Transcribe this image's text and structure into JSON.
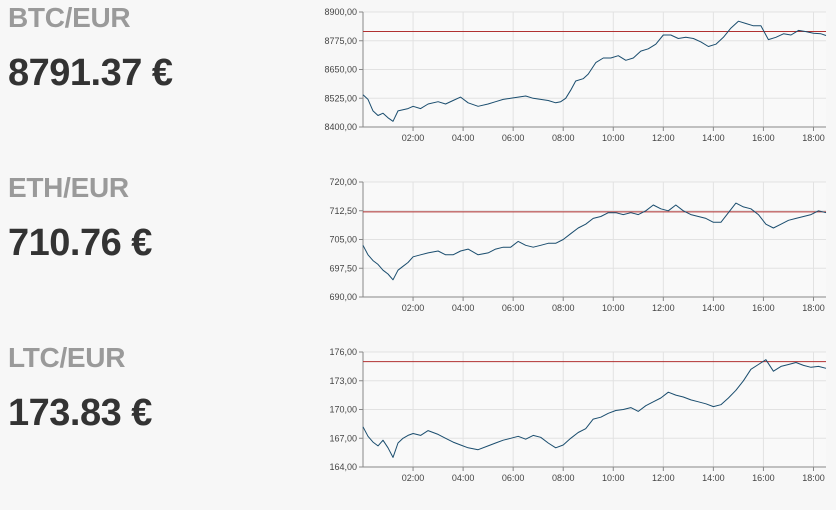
{
  "colors": {
    "line": "#1a4d6e",
    "reference": "#b03030",
    "grid": "#e2e2e2",
    "axis": "#888888",
    "pair_text": "#9a9a9a",
    "price_text": "#333333"
  },
  "tickers": [
    {
      "pair": "BTC/EUR",
      "price": "8791.37 €"
    },
    {
      "pair": "ETH/EUR",
      "price": "710.76 €"
    },
    {
      "pair": "LTC/EUR",
      "price": "173.83 €"
    }
  ],
  "chart_data": [
    {
      "type": "line",
      "title": "BTC/EUR",
      "xlabel": "",
      "ylabel": "",
      "x_unit": "hours",
      "xlim": [
        0,
        18.5
      ],
      "ylim": [
        8400,
        8900
      ],
      "yticks": [
        "8900,00",
        "8775,00",
        "8650,00",
        "8525,00",
        "8400,00"
      ],
      "xticks": [
        "02:00",
        "04:00",
        "06:00",
        "08:00",
        "10:00",
        "12:00",
        "14:00",
        "16:00",
        "18:00"
      ],
      "xtick_values": [
        2,
        4,
        6,
        8,
        10,
        12,
        14,
        16,
        18
      ],
      "grid": true,
      "reference_line": 8815,
      "x": [
        0,
        0.2,
        0.4,
        0.6,
        0.8,
        1.0,
        1.2,
        1.4,
        1.6,
        1.8,
        2.0,
        2.3,
        2.6,
        3.0,
        3.3,
        3.6,
        3.9,
        4.2,
        4.6,
        5.0,
        5.3,
        5.6,
        5.9,
        6.2,
        6.5,
        6.8,
        7.1,
        7.4,
        7.7,
        7.9,
        8.1,
        8.3,
        8.5,
        8.8,
        9.0,
        9.3,
        9.6,
        9.9,
        10.2,
        10.5,
        10.8,
        11.1,
        11.4,
        11.7,
        12.0,
        12.3,
        12.6,
        12.9,
        13.2,
        13.5,
        13.8,
        14.1,
        14.4,
        14.7,
        15.0,
        15.3,
        15.6,
        15.9,
        16.2,
        16.5,
        16.8,
        17.1,
        17.4,
        17.7,
        18.0,
        18.3,
        18.5
      ],
      "y": [
        8540,
        8520,
        8470,
        8450,
        8460,
        8440,
        8425,
        8470,
        8475,
        8480,
        8490,
        8480,
        8500,
        8510,
        8500,
        8515,
        8530,
        8505,
        8490,
        8500,
        8510,
        8520,
        8525,
        8530,
        8535,
        8525,
        8520,
        8515,
        8505,
        8510,
        8525,
        8560,
        8600,
        8610,
        8630,
        8680,
        8700,
        8700,
        8710,
        8690,
        8700,
        8730,
        8740,
        8760,
        8800,
        8800,
        8785,
        8790,
        8785,
        8770,
        8750,
        8760,
        8790,
        8830,
        8860,
        8850,
        8840,
        8840,
        8780,
        8790,
        8805,
        8800,
        8820,
        8815,
        8808,
        8805,
        8798
      ]
    },
    {
      "type": "line",
      "title": "ETH/EUR",
      "xlabel": "",
      "ylabel": "",
      "x_unit": "hours",
      "xlim": [
        0,
        18.5
      ],
      "ylim": [
        690,
        720
      ],
      "yticks": [
        "720,00",
        "712,50",
        "705,00",
        "697,50",
        "690,00"
      ],
      "xticks": [
        "02:00",
        "04:00",
        "06:00",
        "08:00",
        "10:00",
        "12:00",
        "14:00",
        "16:00",
        "18:00"
      ],
      "xtick_values": [
        2,
        4,
        6,
        8,
        10,
        12,
        14,
        16,
        18
      ],
      "grid": true,
      "reference_line": 712.2,
      "x": [
        0,
        0.2,
        0.4,
        0.6,
        0.8,
        1.0,
        1.2,
        1.4,
        1.6,
        1.8,
        2.0,
        2.3,
        2.6,
        3.0,
        3.3,
        3.6,
        3.9,
        4.2,
        4.6,
        5.0,
        5.3,
        5.6,
        5.9,
        6.2,
        6.5,
        6.8,
        7.1,
        7.4,
        7.7,
        8.0,
        8.3,
        8.6,
        8.9,
        9.2,
        9.5,
        9.8,
        10.1,
        10.4,
        10.7,
        11.0,
        11.3,
        11.6,
        11.9,
        12.2,
        12.5,
        12.8,
        13.1,
        13.4,
        13.7,
        14.0,
        14.3,
        14.6,
        14.9,
        15.2,
        15.5,
        15.8,
        16.1,
        16.4,
        16.7,
        17.0,
        17.3,
        17.6,
        17.9,
        18.2,
        18.5
      ],
      "y": [
        703.5,
        701,
        699.5,
        698.5,
        697,
        696,
        694.5,
        697,
        698,
        699,
        700.5,
        701,
        701.5,
        702,
        701,
        701,
        702,
        702.5,
        701,
        701.5,
        702.5,
        703,
        703,
        704.5,
        703.5,
        703,
        703.5,
        704,
        704,
        705,
        706.5,
        708,
        709,
        710.5,
        711,
        712,
        712,
        711.5,
        712,
        711.5,
        712.5,
        714,
        713,
        712.5,
        714,
        712.5,
        711.5,
        711,
        710.5,
        709.5,
        709.5,
        712,
        714.5,
        713.5,
        713,
        711.5,
        709,
        708,
        709,
        710,
        710.5,
        711,
        711.5,
        712.5,
        712
      ]
    },
    {
      "type": "line",
      "title": "LTC/EUR",
      "xlabel": "",
      "ylabel": "",
      "x_unit": "hours",
      "xlim": [
        0,
        18.5
      ],
      "ylim": [
        164,
        176
      ],
      "yticks": [
        "176,00",
        "173,00",
        "170,00",
        "167,00",
        "164,00"
      ],
      "xticks": [
        "02:00",
        "04:00",
        "06:00",
        "08:00",
        "10:00",
        "12:00",
        "14:00",
        "16:00",
        "18:00"
      ],
      "xtick_values": [
        2,
        4,
        6,
        8,
        10,
        12,
        14,
        16,
        18
      ],
      "grid": true,
      "reference_line": 175.0,
      "x": [
        0,
        0.2,
        0.4,
        0.6,
        0.8,
        1.0,
        1.2,
        1.4,
        1.6,
        1.8,
        2.0,
        2.3,
        2.6,
        3.0,
        3.3,
        3.6,
        3.9,
        4.2,
        4.6,
        5.0,
        5.3,
        5.6,
        5.9,
        6.2,
        6.5,
        6.8,
        7.1,
        7.4,
        7.7,
        8.0,
        8.3,
        8.6,
        8.9,
        9.2,
        9.5,
        9.8,
        10.1,
        10.4,
        10.7,
        11.0,
        11.3,
        11.6,
        11.9,
        12.2,
        12.5,
        12.8,
        13.1,
        13.4,
        13.7,
        14.0,
        14.3,
        14.6,
        14.9,
        15.2,
        15.5,
        15.8,
        16.1,
        16.4,
        16.7,
        17.0,
        17.3,
        17.6,
        17.9,
        18.2,
        18.5
      ],
      "y": [
        168.2,
        167.2,
        166.6,
        166.2,
        166.8,
        166,
        165,
        166.5,
        167,
        167.3,
        167.5,
        167.3,
        167.8,
        167.4,
        167,
        166.6,
        166.3,
        166,
        165.8,
        166.2,
        166.5,
        166.8,
        167,
        167.2,
        166.9,
        167.3,
        167.1,
        166.5,
        166,
        166.3,
        167,
        167.6,
        168,
        169,
        169.2,
        169.6,
        169.9,
        170,
        170.2,
        169.8,
        170.4,
        170.8,
        171.2,
        171.8,
        171.5,
        171.3,
        171,
        170.8,
        170.6,
        170.3,
        170.5,
        171.2,
        172,
        173,
        174.2,
        174.7,
        175.2,
        174,
        174.5,
        174.7,
        174.9,
        174.6,
        174.4,
        174.5,
        174.3
      ]
    }
  ]
}
